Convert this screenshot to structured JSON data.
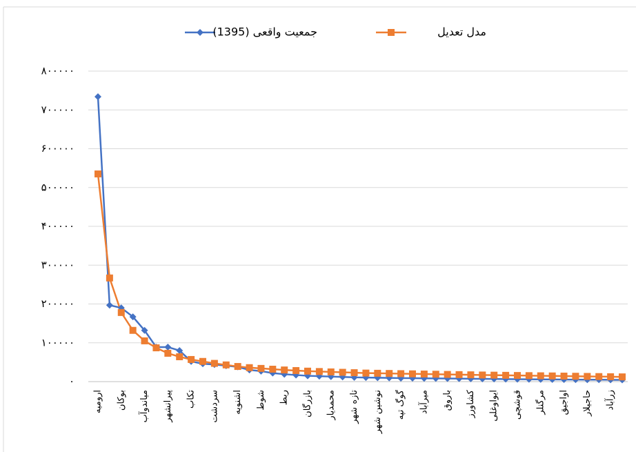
{
  "chart_data": {
    "type": "line",
    "categories": [
      "ارومیه",
      null,
      "بوکان",
      null,
      "میاندوآب",
      null,
      "پیرانشهر",
      null,
      "تکاب",
      null,
      "سردشت",
      null,
      "اشنویه",
      null,
      "شوط",
      null,
      "ربط",
      null,
      "بازرگان",
      null,
      "محمدیار",
      null,
      "تازه شهر",
      null,
      "نوشین شهر",
      null,
      "گوگ تپه",
      null,
      "میرآباد",
      null,
      "باروق",
      null,
      "کشاورز",
      null,
      "ایواوغلی",
      null,
      "قوشچی",
      null,
      "مرگنلر",
      null,
      "اواجیق",
      null,
      "حاجیلار",
      null,
      "زرآباد",
      null
    ],
    "series": [
      {
        "name": "جمعیت واقعی (1395)",
        "color": "#4472c4",
        "marker": "diamond",
        "values": [
          734000,
          197000,
          190000,
          167000,
          132000,
          89000,
          89000,
          80000,
          52000,
          46000,
          44000,
          41000,
          38000,
          30000,
          27000,
          22000,
          19000,
          17000,
          15000,
          14000,
          13000,
          12000,
          11000,
          10500,
          10000,
          9500,
          9000,
          8800,
          8500,
          8200,
          8000,
          7700,
          7400,
          7100,
          6800,
          6500,
          6200,
          6000,
          5800,
          5600,
          5400,
          5200,
          5000,
          4800,
          4600,
          4400
        ]
      },
      {
        "name": "مدل تعدیل",
        "color": "#ed7d31",
        "marker": "square",
        "values": [
          535000,
          267000,
          178000,
          132000,
          105000,
          87000,
          73000,
          64000,
          57000,
          52000,
          47000,
          43000,
          39000,
          36000,
          34000,
          32000,
          30000,
          28500,
          27000,
          26000,
          25000,
          24000,
          23000,
          22000,
          21500,
          21000,
          20500,
          20000,
          19500,
          19000,
          18500,
          18000,
          17500,
          17000,
          16600,
          16200,
          15800,
          15400,
          15000,
          14600,
          14200,
          13800,
          13400,
          13000,
          12600,
          12200
        ]
      }
    ],
    "ylim": [
      0,
      800000
    ],
    "yticks": [
      {
        "value": 0,
        "label": "۰"
      },
      {
        "value": 100000,
        "label": "۱۰۰۰۰۰"
      },
      {
        "value": 200000,
        "label": "۲۰۰۰۰۰"
      },
      {
        "value": 300000,
        "label": "۳۰۰۰۰۰"
      },
      {
        "value": 400000,
        "label": "۴۰۰۰۰۰"
      },
      {
        "value": 500000,
        "label": "۵۰۰۰۰۰"
      },
      {
        "value": 600000,
        "label": "۶۰۰۰۰۰"
      },
      {
        "value": 700000,
        "label": "۷۰۰۰۰۰"
      },
      {
        "value": 800000,
        "label": "۸۰۰۰۰۰"
      }
    ],
    "grid": true,
    "legend": "top"
  }
}
